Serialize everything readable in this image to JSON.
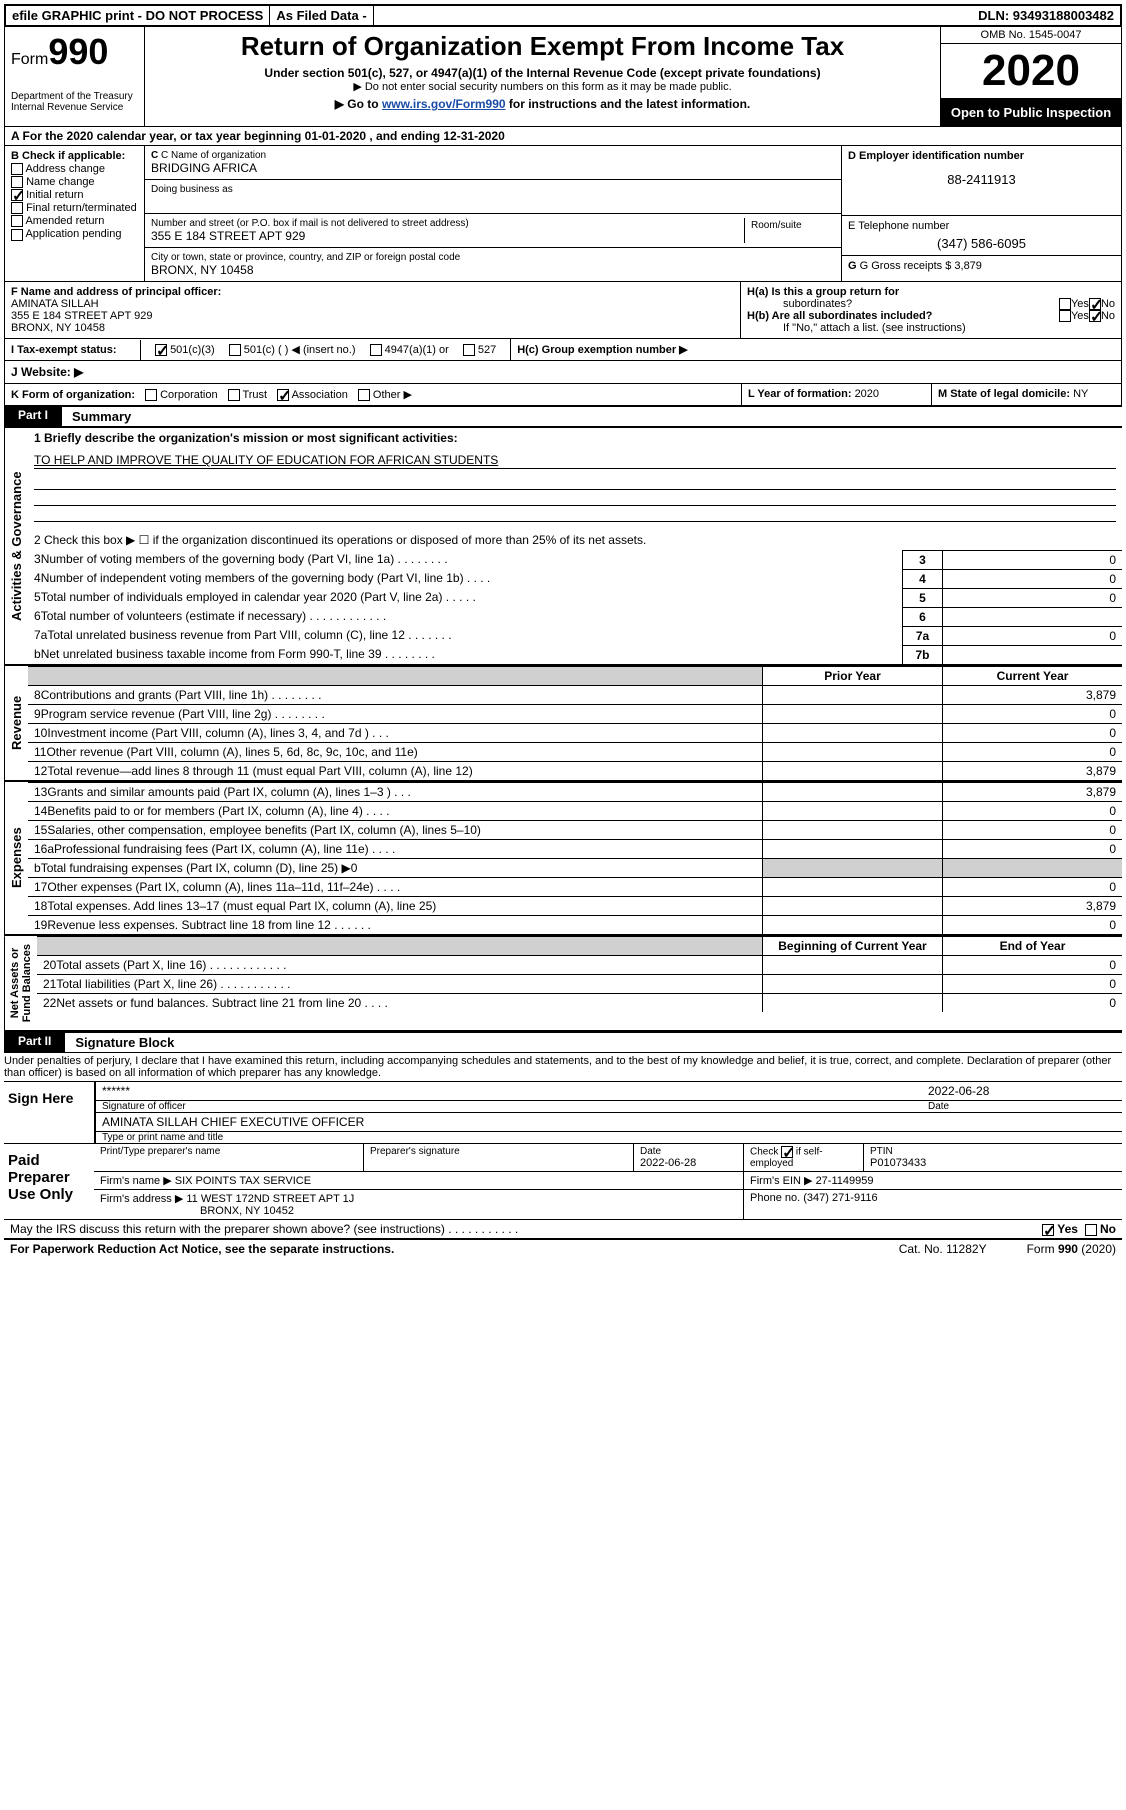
{
  "topbar": {
    "efile": "efile GRAPHIC print - DO NOT PROCESS",
    "asfiled": "As Filed Data -",
    "dln": "DLN: 93493188003482"
  },
  "header": {
    "form_label": "Form",
    "form_num": "990",
    "dept": "Department of the Treasury\nInternal Revenue Service",
    "title": "Return of Organization Exempt From Income Tax",
    "sub1": "Under section 501(c), 527, or 4947(a)(1) of the Internal Revenue Code (except private foundations)",
    "sub2": "▶ Do not enter social security numbers on this form as it may be made public.",
    "sub3_pre": "▶ Go to ",
    "sub3_link": "www.irs.gov/Form990",
    "sub3_post": " for instructions and the latest information.",
    "omb": "OMB No. 1545-0047",
    "year": "2020",
    "open": "Open to Public Inspection"
  },
  "A": {
    "text": "A  For the 2020 calendar year, or tax year beginning 01-01-2020   , and ending 12-31-2020"
  },
  "B": {
    "label": "B Check if applicable:",
    "items": [
      "Address change",
      "Name change",
      "Initial return",
      "Final return/terminated",
      "Amended return",
      "Application pending"
    ],
    "checked_idx": 2
  },
  "C": {
    "name_lbl": "C Name of organization",
    "name": "BRIDGING AFRICA",
    "dba_lbl": "Doing business as",
    "addr_lbl": "Number and street (or P.O. box if mail is not delivered to street address)",
    "room_lbl": "Room/suite",
    "addr": "355 E 184 STREET APT 929",
    "city_lbl": "City or town, state or province, country, and ZIP or foreign postal code",
    "city": "BRONX, NY  10458"
  },
  "D": {
    "lbl": "D Employer identification number",
    "val": "88-2411913"
  },
  "E": {
    "lbl": "E Telephone number",
    "val": "(347) 586-6095"
  },
  "G": {
    "lbl": "G Gross receipts $ ",
    "val": "3,879"
  },
  "F": {
    "lbl": "F  Name and address of principal officer:",
    "name": "AMINATA SILLAH",
    "addr1": "355 E 184 STREET APT 929",
    "addr2": "BRONX, NY  10458"
  },
  "H": {
    "a": "H(a)  Is this a group return for",
    "a2": "subordinates?",
    "b": "H(b)  Are all subordinates included?",
    "note": "If \"No,\" attach a list. (see instructions)",
    "c": "H(c)  Group exemption number ▶",
    "yes": "Yes",
    "no": "No"
  },
  "I": {
    "lbl": "I  Tax-exempt status:",
    "opts": [
      "501(c)(3)",
      "501(c) (  ) ◀ (insert no.)",
      "4947(a)(1) or",
      "527"
    ]
  },
  "J": {
    "lbl": "J  Website: ▶"
  },
  "K": {
    "lbl": "K Form of organization:",
    "opts": [
      "Corporation",
      "Trust",
      "Association",
      "Other ▶"
    ],
    "checked_idx": 2
  },
  "L": {
    "lbl": "L Year of formation: ",
    "val": "2020"
  },
  "M": {
    "lbl": "M State of legal domicile: ",
    "val": "NY"
  },
  "part1": {
    "tag": "Part I",
    "title": "Summary"
  },
  "sections": {
    "ag": {
      "label": "Activities & Governance",
      "mission_lbl": "1 Briefly describe the organization's mission or most significant activities:",
      "mission": "TO HELP AND IMPROVE THE QUALITY OF EDUCATION FOR AFRICAN STUDENTS",
      "line2": "2  Check this box ▶ ☐ if the organization discontinued its operations or disposed of more than 25% of its net assets.",
      "rows": [
        {
          "n": "3",
          "t": "Number of voting members of the governing body (Part VI, line 1a)  .   .   .   .   .   .   .   .",
          "cn": "3",
          "v": "0"
        },
        {
          "n": "4",
          "t": "Number of independent voting members of the governing body (Part VI, line 1b)   .   .   .   .",
          "cn": "4",
          "v": "0"
        },
        {
          "n": "5",
          "t": "Total number of individuals employed in calendar year 2020 (Part V, line 2a)   .   .   .   .   .",
          "cn": "5",
          "v": "0"
        },
        {
          "n": "6",
          "t": "Total number of volunteers (estimate if necessary)   .   .   .   .   .   .   .   .   .   .   .   .",
          "cn": "6",
          "v": ""
        },
        {
          "n": "7a",
          "t": "Total unrelated business revenue from Part VIII, column (C), line 12   .   .   .   .   .   .   .",
          "cn": "7a",
          "v": "0"
        },
        {
          "n": "b",
          "t": "Net unrelated business taxable income from Form 990-T, line 39   .   .   .   .   .   .   .   .",
          "cn": "7b",
          "v": ""
        }
      ]
    },
    "rev": {
      "label": "Revenue",
      "hdr_py": "Prior Year",
      "hdr_cy": "Current Year",
      "rows": [
        {
          "n": "8",
          "t": "Contributions and grants (Part VIII, line 1h)   .   .   .   .   .   .   .   .",
          "py": "",
          "cy": "3,879"
        },
        {
          "n": "9",
          "t": "Program service revenue (Part VIII, line 2g)   .   .   .   .   .   .   .   .",
          "py": "",
          "cy": "0"
        },
        {
          "n": "10",
          "t": "Investment income (Part VIII, column (A), lines 3, 4, and 7d )   .   .   .",
          "py": "",
          "cy": "0"
        },
        {
          "n": "11",
          "t": "Other revenue (Part VIII, column (A), lines 5, 6d, 8c, 9c, 10c, and 11e)",
          "py": "",
          "cy": "0"
        },
        {
          "n": "12",
          "t": "Total revenue—add lines 8 through 11 (must equal Part VIII, column (A), line 12)",
          "py": "",
          "cy": "3,879"
        }
      ]
    },
    "exp": {
      "label": "Expenses",
      "rows": [
        {
          "n": "13",
          "t": "Grants and similar amounts paid (Part IX, column (A), lines 1–3 )   .   .   .",
          "py": "",
          "cy": "3,879"
        },
        {
          "n": "14",
          "t": "Benefits paid to or for members (Part IX, column (A), line 4)   .   .   .   .",
          "py": "",
          "cy": "0"
        },
        {
          "n": "15",
          "t": "Salaries, other compensation, employee benefits (Part IX, column (A), lines 5–10)",
          "py": "",
          "cy": "0"
        },
        {
          "n": "16a",
          "t": "Professional fundraising fees (Part IX, column (A), line 11e)   .   .   .   .",
          "py": "",
          "cy": "0"
        },
        {
          "n": "b",
          "t": "Total fundraising expenses (Part IX, column (D), line 25)  ▶0",
          "py": "GRAY",
          "cy": "GRAY"
        },
        {
          "n": "17",
          "t": "Other expenses (Part IX, column (A), lines 11a–11d, 11f–24e)   .   .   .   .",
          "py": "",
          "cy": "0"
        },
        {
          "n": "18",
          "t": "Total expenses. Add lines 13–17 (must equal Part IX, column (A), line 25)",
          "py": "",
          "cy": "3,879"
        },
        {
          "n": "19",
          "t": "Revenue less expenses. Subtract line 18 from line 12   .   .   .   .   .   .",
          "py": "",
          "cy": "0"
        }
      ]
    },
    "na": {
      "label": "Net Assets or\nFund Balances",
      "hdr_py": "Beginning of Current Year",
      "hdr_cy": "End of Year",
      "rows": [
        {
          "n": "20",
          "t": "Total assets (Part X, line 16)   .   .   .   .   .   .   .   .   .   .   .   .",
          "py": "",
          "cy": "0"
        },
        {
          "n": "21",
          "t": "Total liabilities (Part X, line 26)   .   .   .   .   .   .   .   .   .   .   .",
          "py": "",
          "cy": "0"
        },
        {
          "n": "22",
          "t": "Net assets or fund balances. Subtract line 21 from line 20   .   .   .   .",
          "py": "",
          "cy": "0"
        }
      ]
    }
  },
  "part2": {
    "tag": "Part II",
    "title": "Signature Block",
    "perjury": "Under penalties of perjury, I declare that I have examined this return, including accompanying schedules and statements, and to the best of my knowledge and belief, it is true, correct, and complete. Declaration of preparer (other than officer) is based on all information of which preparer has any knowledge."
  },
  "sign": {
    "here": "Sign Here",
    "stars": "******",
    "sig_lbl": "Signature of officer",
    "date_lbl": "Date",
    "date": "2022-06-28",
    "name": "AMINATA SILLAH  CHIEF EXECUTIVE OFFICER",
    "name_lbl": "Type or print name and title"
  },
  "paid": {
    "label": "Paid Preparer Use Only",
    "pt_name_lbl": "Print/Type preparer's name",
    "sig_lbl": "Preparer's signature",
    "date_lbl": "Date",
    "date": "2022-06-28",
    "check_lbl": "Check ☑ if self-employed",
    "ptin_lbl": "PTIN",
    "ptin": "P01073433",
    "firm_name_lbl": "Firm's name   ▶",
    "firm_name": "SIX POINTS TAX SERVICE",
    "firm_ein_lbl": "Firm's EIN ▶",
    "firm_ein": "27-1149959",
    "firm_addr_lbl": "Firm's address ▶",
    "firm_addr1": "11 WEST 172ND STREET APT 1J",
    "firm_addr2": "BRONX, NY  10452",
    "phone_lbl": "Phone no. ",
    "phone": "(347) 271-9116"
  },
  "discuss": {
    "txt": "May the IRS discuss this return with the preparer shown above? (see instructions)   .   .   .   .   .   .   .   .   .   .   .",
    "yes": "Yes",
    "no": "No"
  },
  "footer": {
    "pra": "For Paperwork Reduction Act Notice, see the separate instructions.",
    "cat": "Cat. No. 11282Y",
    "form": "Form 990 (2020)"
  }
}
